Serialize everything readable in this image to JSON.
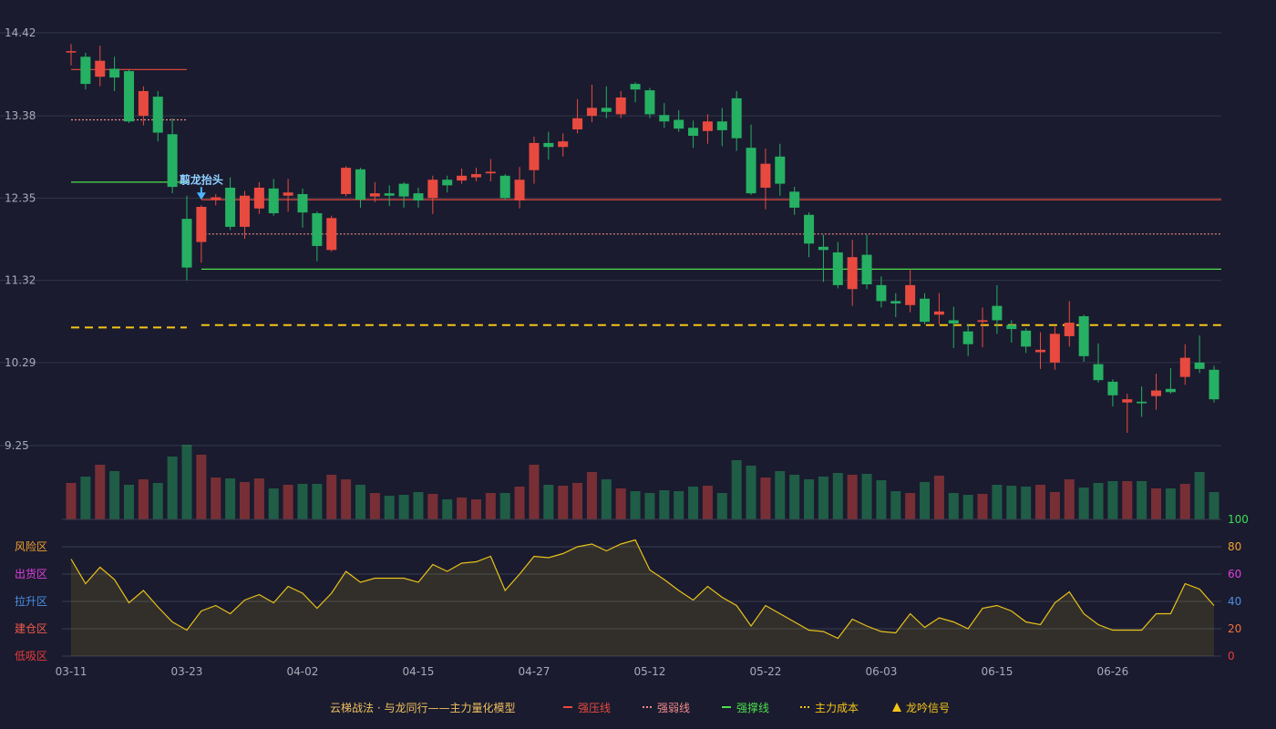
{
  "chart_data": {
    "type": "candlestick",
    "categories": [
      "03-11",
      null,
      null,
      null,
      null,
      null,
      null,
      null,
      "03-23",
      null,
      null,
      null,
      null,
      null,
      null,
      null,
      "04-02",
      null,
      null,
      null,
      null,
      null,
      null,
      null,
      "04-15",
      null,
      null,
      null,
      null,
      null,
      null,
      null,
      "04-27",
      null,
      null,
      null,
      null,
      null,
      null,
      null,
      "05-12",
      null,
      null,
      null,
      null,
      null,
      null,
      null,
      "05-22",
      null,
      null,
      null,
      null,
      null,
      null,
      null,
      "06-03",
      null,
      null,
      null,
      null,
      null,
      null,
      null,
      "06-15",
      null,
      null,
      null,
      null,
      null,
      null,
      null,
      "06-26",
      null,
      null,
      null,
      null,
      null,
      null,
      null
    ],
    "open": [
      14.18,
      14.12,
      13.87,
      13.97,
      13.94,
      13.38,
      13.62,
      13.15,
      12.09,
      11.8,
      12.33,
      12.48,
      11.99,
      12.22,
      12.47,
      12.38,
      12.4,
      12.16,
      11.7,
      12.4,
      12.71,
      12.37,
      12.41,
      12.53,
      12.41,
      12.35,
      12.58,
      12.57,
      12.61,
      12.66,
      12.63,
      12.32,
      12.7,
      13.04,
      12.99,
      13.21,
      13.38,
      13.48,
      13.4,
      13.78,
      13.7,
      13.39,
      13.33,
      13.23,
      13.19,
      13.31,
      13.6,
      12.98,
      12.48,
      12.87,
      12.43,
      12.14,
      11.74,
      11.67,
      11.21,
      11.64,
      11.26,
      11.06,
      11.01,
      11.09,
      10.89,
      10.82,
      10.68,
      10.8,
      11.0,
      10.76,
      10.69,
      10.42,
      10.29,
      10.62,
      10.87,
      10.27,
      10.05,
      9.79,
      9.8,
      9.87,
      9.96,
      10.11,
      10.29,
      10.2
    ],
    "high": [
      14.28,
      14.17,
      14.26,
      14.12,
      13.96,
      13.75,
      13.69,
      13.35,
      12.38,
      12.26,
      12.4,
      12.61,
      12.44,
      12.55,
      12.59,
      12.59,
      12.47,
      12.18,
      12.13,
      12.75,
      12.73,
      12.55,
      12.51,
      12.55,
      12.48,
      12.63,
      12.63,
      12.72,
      12.73,
      12.84,
      12.65,
      12.74,
      13.12,
      13.18,
      13.16,
      13.59,
      13.77,
      13.75,
      13.69,
      13.8,
      13.73,
      13.54,
      13.45,
      13.32,
      13.4,
      13.48,
      13.69,
      13.27,
      12.97,
      13.03,
      12.49,
      12.17,
      11.89,
      11.8,
      11.83,
      11.89,
      11.37,
      11.16,
      11.46,
      11.16,
      11.16,
      10.99,
      10.77,
      10.98,
      11.26,
      10.82,
      10.72,
      10.67,
      10.74,
      11.06,
      10.89,
      10.53,
      10.08,
      9.9,
      9.99,
      10.15,
      10.22,
      10.52,
      10.63,
      10.25
    ],
    "low": [
      14.01,
      13.71,
      13.75,
      13.69,
      13.29,
      13.26,
      13.06,
      12.41,
      11.32,
      11.54,
      12.26,
      11.95,
      11.84,
      12.15,
      12.13,
      12.18,
      11.98,
      11.56,
      11.68,
      12.37,
      12.23,
      12.3,
      12.25,
      12.23,
      12.23,
      12.15,
      12.42,
      12.53,
      12.56,
      12.56,
      12.33,
      12.22,
      12.53,
      12.83,
      12.87,
      13.16,
      13.3,
      13.35,
      13.35,
      13.55,
      13.35,
      13.23,
      13.18,
      12.98,
      13.03,
      13.0,
      12.94,
      12.39,
      12.21,
      12.38,
      12.14,
      11.61,
      11.3,
      11.22,
      11.0,
      11.21,
      10.98,
      10.86,
      10.92,
      10.77,
      10.77,
      10.47,
      10.37,
      10.48,
      10.65,
      10.54,
      10.41,
      10.21,
      10.2,
      10.49,
      10.3,
      10.04,
      9.74,
      9.41,
      9.61,
      9.7,
      9.9,
      10.01,
      10.16,
      9.79
    ],
    "close": [
      14.19,
      13.78,
      14.07,
      13.86,
      13.31,
      13.69,
      13.17,
      12.49,
      11.48,
      12.24,
      12.36,
      11.99,
      12.38,
      12.48,
      12.16,
      12.42,
      12.17,
      11.75,
      12.1,
      12.73,
      12.33,
      12.41,
      12.38,
      12.37,
      12.32,
      12.58,
      12.51,
      12.63,
      12.65,
      12.68,
      12.35,
      12.58,
      13.04,
      12.99,
      13.06,
      13.35,
      13.48,
      13.43,
      13.61,
      13.71,
      13.4,
      13.31,
      13.22,
      13.13,
      13.31,
      13.2,
      13.1,
      12.41,
      12.78,
      12.53,
      12.23,
      11.78,
      11.7,
      11.26,
      11.61,
      11.27,
      11.06,
      11.03,
      11.26,
      10.8,
      10.93,
      10.78,
      10.52,
      10.82,
      10.82,
      10.71,
      10.49,
      10.45,
      10.65,
      10.79,
      10.37,
      10.07,
      9.88,
      9.83,
      9.78,
      9.94,
      9.92,
      10.35,
      10.21,
      9.83
    ],
    "volume": [
      40,
      47,
      60,
      53,
      38,
      44,
      40,
      69,
      82,
      71,
      46,
      45,
      41,
      45,
      34,
      38,
      39,
      39,
      49,
      44,
      38,
      29,
      26,
      27,
      30,
      28,
      22,
      24,
      22,
      29,
      29,
      36,
      60,
      38,
      37,
      40,
      52,
      44,
      34,
      31,
      29,
      32,
      31,
      36,
      37,
      29,
      65,
      59,
      46,
      53,
      49,
      44,
      47,
      51,
      49,
      50,
      43,
      31,
      29,
      41,
      48,
      29,
      27,
      28,
      38,
      37,
      36,
      38,
      30,
      44,
      35,
      40,
      42,
      42,
      42,
      34,
      34,
      39,
      52,
      30
    ],
    "ylim": [
      9.25,
      14.42
    ],
    "yticks": [
      14.42,
      13.38,
      12.35,
      11.32,
      10.29,
      9.25
    ],
    "up_color": "#e84a3f",
    "down_color": "#26b063",
    "grid": true,
    "indicator": {
      "values": [
        71,
        53,
        65,
        56,
        39,
        48,
        36,
        25,
        19,
        33,
        37,
        31,
        41,
        45,
        39,
        51,
        46,
        35,
        46,
        62,
        54,
        57,
        57,
        57,
        54,
        67,
        62,
        68,
        69,
        73,
        48,
        60,
        73,
        72,
        75,
        80,
        82,
        77,
        82,
        85,
        63,
        56,
        48,
        41,
        51,
        43,
        37,
        22,
        37,
        31,
        25,
        19,
        18,
        13,
        27,
        22,
        18,
        17,
        31,
        21,
        28,
        25,
        20,
        35,
        37,
        33,
        25,
        23,
        39,
        47,
        31,
        23,
        19,
        19,
        19,
        31,
        31,
        53,
        49,
        37
      ],
      "color": "#e8c21a",
      "ylim": [
        0,
        100
      ],
      "yticks": [
        100,
        80,
        60,
        40,
        20,
        0
      ],
      "ytick_colors": [
        "#3ddc5a",
        "#f0a030",
        "#e040e0",
        "#4a90e2",
        "#f07040",
        "#e83a3a"
      ],
      "zones": [
        {
          "label": "风险区",
          "value": 80,
          "color": "#f0a030"
        },
        {
          "label": "出货区",
          "value": 60,
          "color": "#e040e0"
        },
        {
          "label": "拉升区",
          "value": 40,
          "color": "#4a90e2"
        },
        {
          "label": "建仓区",
          "value": 20,
          "color": "#f05a4a"
        },
        {
          "label": "低吸区",
          "value": 0,
          "color": "#e83a3a"
        }
      ]
    },
    "levels": [
      {
        "name": "强压线",
        "color": "#e84a3f",
        "style": "solid",
        "segments": [
          {
            "start": 0,
            "end": 8,
            "value": 13.96
          },
          {
            "start": 9,
            "end": 79,
            "value": 12.33
          }
        ]
      },
      {
        "name": "强弱线",
        "color": "#f08a8a",
        "style": "dotted",
        "segments": [
          {
            "start": 0,
            "end": 8,
            "value": 13.33
          },
          {
            "start": 9,
            "end": 79,
            "value": 11.9
          }
        ]
      },
      {
        "name": "强撑线",
        "color": "#4cdf4c",
        "style": "solid",
        "segments": [
          {
            "start": 0,
            "end": 8,
            "value": 12.55
          },
          {
            "start": 9,
            "end": 79,
            "value": 11.46
          }
        ]
      },
      {
        "name": "主力成本",
        "color": "#f5c518",
        "style": "dashed",
        "segments": [
          {
            "start": 0,
            "end": 8,
            "value": 10.73
          },
          {
            "start": 9,
            "end": 79,
            "value": 10.76
          }
        ]
      }
    ],
    "signal": {
      "name": "龙吟信号",
      "color": "#f5c518",
      "arrow_color": "#4fb3ff",
      "marks": [
        {
          "index": 9,
          "label": "翦龙抬头"
        }
      ]
    },
    "legend_title": "云梯战法 · 与龙同行——主力量化模型"
  }
}
